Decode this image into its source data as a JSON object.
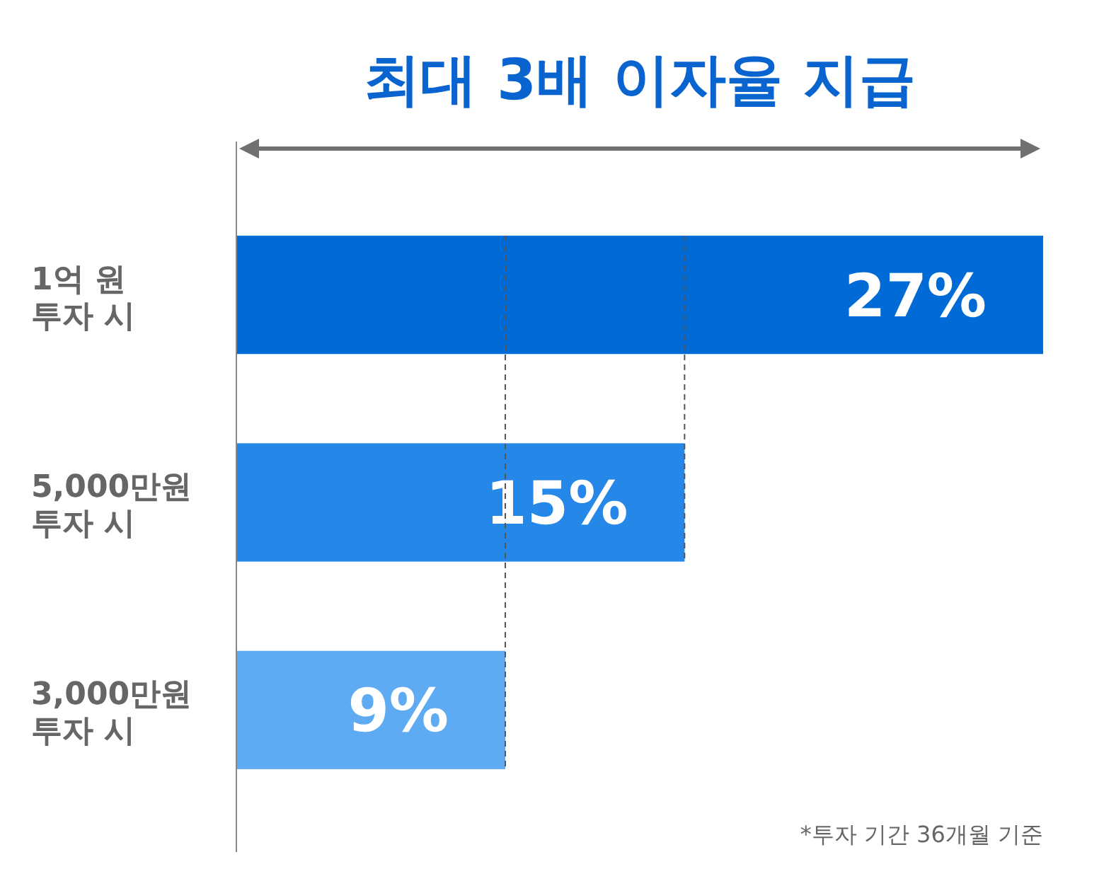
{
  "chart_data": {
    "type": "bar",
    "orientation": "horizontal",
    "title": "최대 3배 이자율 지급",
    "categories": [
      "1억 원\n투자 시",
      "5,000만원\n투자 시",
      "3,000만원\n투자 시"
    ],
    "values": [
      27,
      15,
      9
    ],
    "colors": [
      "#006ad6",
      "#2587e8",
      "#5eaaf3"
    ],
    "value_labels": [
      "27%",
      "15%",
      "9%"
    ],
    "xlim": [
      0,
      27
    ],
    "tick_labels": "y",
    "ref_lines": [
      {
        "axis": "x",
        "value": 9,
        "line_style": "dashed",
        "color": "#555555"
      },
      {
        "axis": "x",
        "value": 15,
        "line_style": "dashed",
        "color": "#555555"
      }
    ],
    "annotations": [
      "*투자 기간 36개월 기준"
    ]
  }
}
